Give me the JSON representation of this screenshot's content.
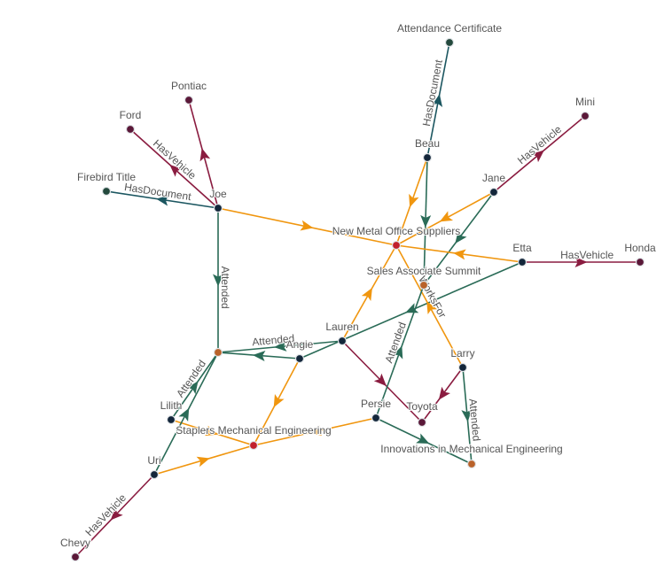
{
  "colors": {
    "HasVehicle": "#8a1c40",
    "HasDocument": "#1b5660",
    "Attended": "#2a6b57",
    "WorksFor": "#f0960f",
    "person": "#13263a",
    "company": "#c2202c",
    "event": "#b9622a",
    "vehicle": "#5a1838",
    "document": "#24493d"
  },
  "nodes": [
    {
      "id": "cert",
      "label": "Attendance Certificate",
      "type": "document"
    },
    {
      "id": "pontiac",
      "label": "Pontiac",
      "type": "vehicle"
    },
    {
      "id": "ford",
      "label": "Ford",
      "type": "vehicle"
    },
    {
      "id": "mini",
      "label": "Mini",
      "type": "vehicle"
    },
    {
      "id": "beau",
      "label": "Beau",
      "type": "person"
    },
    {
      "id": "jane",
      "label": "Jane",
      "type": "person"
    },
    {
      "id": "firebird",
      "label": "Firebird Title",
      "type": "document"
    },
    {
      "id": "joe",
      "label": "Joe",
      "type": "person"
    },
    {
      "id": "newmetal",
      "label": "New Metal Office Suppliers",
      "type": "company"
    },
    {
      "id": "etta",
      "label": "Etta",
      "type": "person"
    },
    {
      "id": "honda",
      "label": "Honda",
      "type": "vehicle"
    },
    {
      "id": "sas",
      "label": "Sales Associate Summit",
      "type": "event"
    },
    {
      "id": "lauren",
      "label": "Lauren",
      "type": "person"
    },
    {
      "id": "angie",
      "label": "Angie",
      "type": "person"
    },
    {
      "id": "eventA",
      "label": "",
      "type": "event"
    },
    {
      "id": "larry",
      "label": "Larry",
      "type": "person"
    },
    {
      "id": "toyota",
      "label": "Toyota",
      "type": "vehicle"
    },
    {
      "id": "persie",
      "label": "Persie",
      "type": "person"
    },
    {
      "id": "lilith",
      "label": "Lilith",
      "type": "person"
    },
    {
      "id": "staplers",
      "label": "Staplers Mechanical Engineering",
      "type": "company"
    },
    {
      "id": "innov",
      "label": "Innovations in Mechanical Engineering",
      "type": "event"
    },
    {
      "id": "uri",
      "label": "Uri",
      "type": "person"
    },
    {
      "id": "chevy",
      "label": "Chevy",
      "type": "vehicle"
    }
  ],
  "edges": [
    {
      "from": "beau",
      "to": "cert",
      "rel": "HasDocument",
      "label": "HasDocument"
    },
    {
      "from": "joe",
      "to": "pontiac",
      "rel": "HasVehicle",
      "label": ""
    },
    {
      "from": "joe",
      "to": "ford",
      "rel": "HasVehicle",
      "label": "HasVehicle"
    },
    {
      "from": "joe",
      "to": "firebird",
      "rel": "HasDocument",
      "label": "HasDocument"
    },
    {
      "from": "joe",
      "to": "newmetal",
      "rel": "WorksFor",
      "label": ""
    },
    {
      "from": "joe",
      "to": "eventA",
      "rel": "Attended",
      "label": "Attended"
    },
    {
      "from": "jane",
      "to": "mini",
      "rel": "HasVehicle",
      "label": "HasVehicle"
    },
    {
      "from": "jane",
      "to": "newmetal",
      "rel": "WorksFor",
      "label": ""
    },
    {
      "from": "jane",
      "to": "sas",
      "rel": "Attended",
      "label": ""
    },
    {
      "from": "beau",
      "to": "sas",
      "rel": "Attended",
      "label": ""
    },
    {
      "from": "beau",
      "to": "newmetal",
      "rel": "WorksFor",
      "label": ""
    },
    {
      "from": "etta",
      "to": "newmetal",
      "rel": "WorksFor",
      "label": ""
    },
    {
      "from": "etta",
      "to": "honda",
      "rel": "HasVehicle",
      "label": "HasVehicle"
    },
    {
      "from": "etta",
      "to": "angie",
      "rel": "Attended",
      "label": ""
    },
    {
      "from": "larry",
      "to": "newmetal",
      "rel": "WorksFor",
      "label": "WorksFor"
    },
    {
      "from": "larry",
      "to": "toyota",
      "rel": "HasVehicle",
      "label": ""
    },
    {
      "from": "larry",
      "to": "innov",
      "rel": "Attended",
      "label": "Attended"
    },
    {
      "from": "lauren",
      "to": "newmetal",
      "rel": "WorksFor",
      "label": ""
    },
    {
      "from": "lauren",
      "to": "toyota",
      "rel": "HasVehicle",
      "label": ""
    },
    {
      "from": "lauren",
      "to": "eventA",
      "rel": "Attended",
      "label": "Attended"
    },
    {
      "from": "persie",
      "to": "sas",
      "rel": "Attended",
      "label": "Attended"
    },
    {
      "from": "persie",
      "to": "innov",
      "rel": "Attended",
      "label": ""
    },
    {
      "from": "persie",
      "to": "staplers",
      "rel": "WorksFor",
      "label": ""
    },
    {
      "from": "angie",
      "to": "staplers",
      "rel": "WorksFor",
      "label": ""
    },
    {
      "from": "angie",
      "to": "eventA",
      "rel": "Attended",
      "label": ""
    },
    {
      "from": "lilith",
      "to": "staplers",
      "rel": "WorksFor",
      "label": ""
    },
    {
      "from": "lilith",
      "to": "eventA",
      "rel": "Attended",
      "label": "Attended"
    },
    {
      "from": "uri",
      "to": "eventA",
      "rel": "Attended",
      "label": ""
    },
    {
      "from": "uri",
      "to": "staplers",
      "rel": "WorksFor",
      "label": ""
    },
    {
      "from": "uri",
      "to": "chevy",
      "rel": "HasVehicle",
      "label": "HasVehicle"
    }
  ]
}
